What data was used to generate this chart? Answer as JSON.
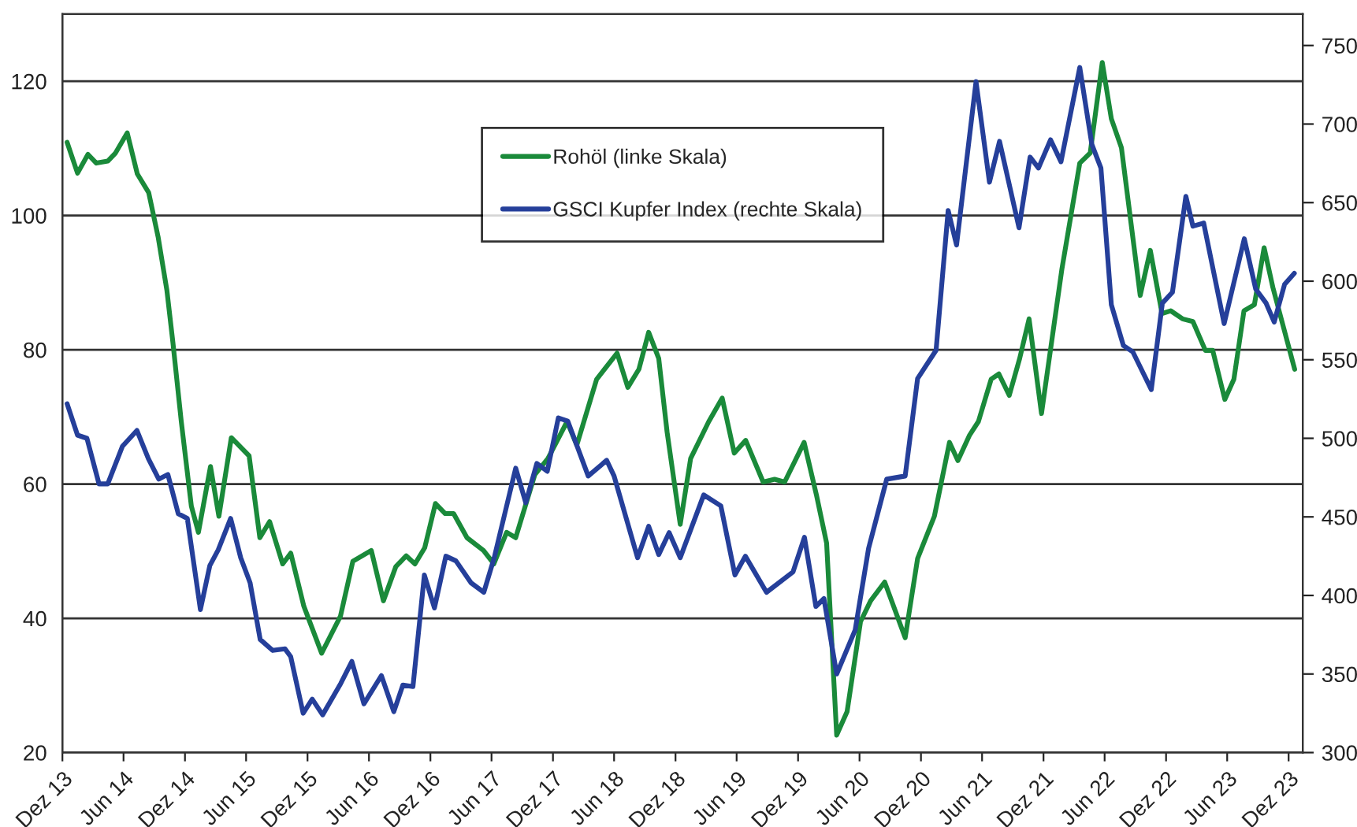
{
  "chart_data": {
    "type": "line",
    "xlim": [
      "2013-12-01",
      "2024-01-12"
    ],
    "xticks": [
      {
        "value": "2013-12-01",
        "label": "Dez 13"
      },
      {
        "value": "2014-06-01",
        "label": "Jun 14"
      },
      {
        "value": "2014-12-01",
        "label": "Dez 14"
      },
      {
        "value": "2015-06-01",
        "label": "Jun 15"
      },
      {
        "value": "2015-12-01",
        "label": "Dez 15"
      },
      {
        "value": "2016-06-01",
        "label": "Jun 16"
      },
      {
        "value": "2016-12-01",
        "label": "Dez 16"
      },
      {
        "value": "2017-06-01",
        "label": "Jun 17"
      },
      {
        "value": "2017-12-01",
        "label": "Dez 17"
      },
      {
        "value": "2018-06-01",
        "label": "Jun 18"
      },
      {
        "value": "2018-12-01",
        "label": "Dez 18"
      },
      {
        "value": "2019-06-01",
        "label": "Jun 19"
      },
      {
        "value": "2019-12-01",
        "label": "Dez 19"
      },
      {
        "value": "2020-06-01",
        "label": "Jun 20"
      },
      {
        "value": "2020-12-01",
        "label": "Dez 20"
      },
      {
        "value": "2021-06-01",
        "label": "Jun 21"
      },
      {
        "value": "2021-12-01",
        "label": "Dez 21"
      },
      {
        "value": "2022-06-01",
        "label": "Jun 22"
      },
      {
        "value": "2022-12-01",
        "label": "Dez 22"
      },
      {
        "value": "2023-06-01",
        "label": "Jun 23"
      },
      {
        "value": "2023-12-01",
        "label": "Dez 23"
      }
    ],
    "ylim": [
      20,
      130
    ],
    "yticks": [
      20,
      40,
      60,
      80,
      100,
      120
    ],
    "y2lim": [
      300,
      770
    ],
    "y2ticks": [
      300,
      350,
      400,
      450,
      500,
      550,
      600,
      650,
      700,
      750
    ],
    "grid": "y",
    "legend": "top",
    "series": [
      {
        "name": "Rohöl (linke Skala)",
        "color": "#1a8a3a",
        "axis": "y",
        "x": [
          "2013-12-15",
          "2014-01-15",
          "2014-02-15",
          "2014-03-12",
          "2014-04-15",
          "2014-05-08",
          "2014-06-12",
          "2014-07-12",
          "2014-08-15",
          "2014-09-12",
          "2014-10-08",
          "2014-10-26",
          "2014-11-20",
          "2014-12-20",
          "2015-01-10",
          "2015-02-15",
          "2015-03-12",
          "2015-04-18",
          "2015-06-10",
          "2015-07-12",
          "2015-08-10",
          "2015-09-18",
          "2015-10-12",
          "2015-11-20",
          "2016-01-12",
          "2016-03-08",
          "2016-04-14",
          "2016-06-08",
          "2016-07-14",
          "2016-08-20",
          "2016-09-20",
          "2016-10-16",
          "2016-11-14",
          "2016-12-16",
          "2017-01-14",
          "2017-02-08",
          "2017-03-20",
          "2017-05-08",
          "2017-06-08",
          "2017-07-16",
          "2017-08-12",
          "2017-10-08",
          "2017-11-16",
          "2018-01-12",
          "2018-02-10",
          "2018-04-10",
          "2018-06-10",
          "2018-07-12",
          "2018-08-14",
          "2018-09-12",
          "2018-10-12",
          "2018-11-06",
          "2018-12-15",
          "2019-01-15",
          "2019-03-10",
          "2019-04-19",
          "2019-05-25",
          "2019-06-28",
          "2019-08-19",
          "2019-09-22",
          "2019-10-22",
          "2019-12-19",
          "2020-01-25",
          "2020-02-24",
          "2020-03-25",
          "2020-04-25",
          "2020-06-04",
          "2020-07-04",
          "2020-08-15",
          "2020-10-15",
          "2020-11-21",
          "2021-01-10",
          "2021-02-24",
          "2021-03-21",
          "2021-04-25",
          "2021-05-21",
          "2021-06-28",
          "2021-07-21",
          "2021-08-21",
          "2021-09-21",
          "2021-10-19",
          "2021-11-25",
          "2022-01-25",
          "2022-03-19",
          "2022-04-19",
          "2022-05-25",
          "2022-06-21",
          "2022-07-21",
          "2022-09-15",
          "2022-10-15",
          "2022-11-19",
          "2022-12-15",
          "2023-01-19",
          "2023-02-19",
          "2023-03-28",
          "2023-04-19",
          "2023-05-25",
          "2023-06-21",
          "2023-07-21",
          "2023-08-21",
          "2023-09-19",
          "2023-10-15",
          "2023-12-19"
        ],
        "values": [
          110.9,
          106.3,
          109.1,
          107.8,
          108.1,
          109.3,
          112.3,
          106.2,
          103.4,
          96.8,
          88.9,
          81.1,
          69.3,
          56.7,
          52.8,
          62.6,
          55.2,
          66.9,
          64.2,
          52.0,
          54.4,
          48.1,
          49.7,
          41.8,
          34.8,
          40.3,
          48.5,
          50.1,
          42.6,
          47.7,
          49.3,
          48.1,
          50.5,
          57.1,
          55.6,
          55.6,
          52.0,
          50.1,
          48.1,
          52.8,
          52.0,
          61.4,
          63.8,
          69.3,
          65.8,
          75.6,
          79.5,
          74.4,
          77.1,
          82.6,
          78.7,
          67.7,
          54.0,
          63.8,
          69.3,
          72.8,
          64.6,
          66.5,
          60.3,
          60.7,
          60.3,
          66.2,
          58.3,
          51.2,
          22.6,
          26.1,
          39.5,
          42.6,
          45.4,
          37.1,
          48.9,
          55.2,
          66.2,
          63.5,
          67.3,
          69.3,
          75.6,
          76.4,
          73.2,
          78.7,
          84.6,
          70.5,
          92.1,
          107.8,
          109.3,
          122.8,
          114.4,
          110.1,
          88.1,
          94.8,
          85.4,
          85.8,
          84.6,
          84.2,
          79.9,
          79.9,
          72.6,
          75.6,
          85.8,
          86.7,
          95.2,
          89.3,
          77.1
        ]
      },
      {
        "name": "GSCI Kupfer Index (rechte Skala)",
        "color": "#253f9a",
        "axis": "y2",
        "x": [
          "2013-12-15",
          "2014-01-15",
          "2014-02-12",
          "2014-03-20",
          "2014-04-15",
          "2014-05-29",
          "2014-07-11",
          "2014-08-14",
          "2014-09-14",
          "2014-10-11",
          "2014-11-11",
          "2014-12-08",
          "2015-01-16",
          "2015-02-13",
          "2015-03-10",
          "2015-04-16",
          "2015-05-16",
          "2015-06-13",
          "2015-07-13",
          "2015-08-19",
          "2015-09-25",
          "2015-10-12",
          "2015-11-18",
          "2015-12-15",
          "2016-01-15",
          "2016-03-09",
          "2016-04-11",
          "2016-05-17",
          "2016-07-08",
          "2016-08-14",
          "2016-09-10",
          "2016-10-10",
          "2016-11-13",
          "2016-12-13",
          "2017-01-16",
          "2017-02-15",
          "2017-04-01",
          "2017-05-09",
          "2017-06-09",
          "2017-08-12",
          "2017-09-11",
          "2017-10-14",
          "2017-11-14",
          "2017-12-17",
          "2018-01-14",
          "2018-03-16",
          "2018-05-10",
          "2018-06-01",
          "2018-08-10",
          "2018-09-12",
          "2018-10-12",
          "2018-11-12",
          "2018-12-15",
          "2019-02-23",
          "2019-04-15",
          "2019-05-27",
          "2019-06-27",
          "2019-08-29",
          "2019-11-16",
          "2019-12-20",
          "2020-01-23",
          "2020-02-16",
          "2020-03-25",
          "2020-05-19",
          "2020-06-28",
          "2020-08-21",
          "2020-10-15",
          "2020-11-21",
          "2021-01-15",
          "2021-02-20",
          "2021-03-17",
          "2021-05-14",
          "2021-06-23",
          "2021-07-23",
          "2021-09-19",
          "2021-10-22",
          "2021-11-16",
          "2021-12-22",
          "2022-01-22",
          "2022-03-19",
          "2022-04-24",
          "2022-05-21",
          "2022-06-21",
          "2022-07-27",
          "2022-08-24",
          "2022-10-18",
          "2022-11-20",
          "2022-12-20",
          "2023-01-29",
          "2023-02-19",
          "2023-03-23",
          "2023-05-23",
          "2023-07-22",
          "2023-08-25",
          "2023-09-25",
          "2023-10-19",
          "2023-11-19",
          "2023-12-18"
        ],
        "values": [
          522,
          502,
          500,
          471,
          471,
          495,
          505,
          487,
          474,
          477,
          452,
          449,
          391,
          419,
          429,
          449,
          424,
          408,
          372,
          365,
          366,
          361,
          325,
          334,
          324,
          344,
          358,
          331,
          349,
          326,
          343,
          342,
          413,
          392,
          425,
          422,
          408,
          402,
          424,
          481,
          459,
          484,
          479,
          513,
          511,
          476,
          486,
          476,
          424,
          444,
          426,
          440,
          424,
          464,
          457,
          413,
          425,
          402,
          415,
          437,
          393,
          398,
          350,
          378,
          430,
          474,
          476,
          538,
          556,
          645,
          623,
          727,
          663,
          689,
          634,
          679,
          672,
          690,
          676,
          736,
          687,
          672,
          585,
          559,
          555,
          531,
          586,
          593,
          654,
          635,
          637,
          573,
          627,
          595,
          586,
          574,
          598,
          605
        ]
      }
    ]
  }
}
